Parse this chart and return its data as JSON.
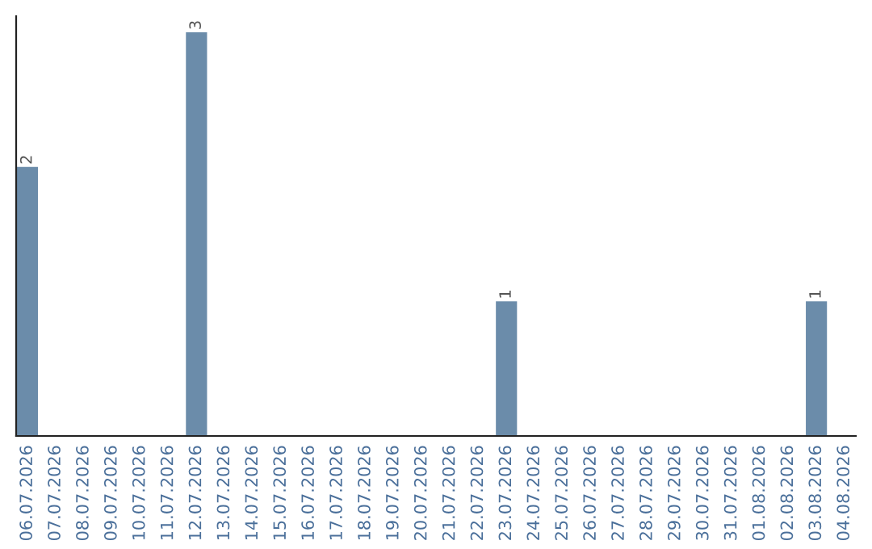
{
  "chart_data": {
    "type": "bar",
    "categories": [
      "06.07.2026",
      "07.07.2026",
      "08.07.2026",
      "09.07.2026",
      "10.07.2026",
      "11.07.2026",
      "12.07.2026",
      "13.07.2026",
      "14.07.2026",
      "15.07.2026",
      "16.07.2026",
      "17.07.2026",
      "18.07.2026",
      "19.07.2026",
      "20.07.2026",
      "21.07.2026",
      "22.07.2026",
      "23.07.2026",
      "24.07.2026",
      "25.07.2026",
      "26.07.2026",
      "27.07.2026",
      "28.07.2026",
      "29.07.2026",
      "30.07.2026",
      "31.07.2026",
      "01.08.2026",
      "02.08.2026",
      "03.08.2026",
      "04.08.2026"
    ],
    "values": [
      2,
      null,
      null,
      null,
      null,
      null,
      3,
      null,
      null,
      null,
      null,
      null,
      null,
      null,
      null,
      null,
      null,
      1,
      null,
      null,
      null,
      null,
      null,
      null,
      null,
      null,
      null,
      null,
      1,
      null
    ],
    "value_labels": [
      "2",
      null,
      null,
      null,
      null,
      null,
      "3",
      null,
      null,
      null,
      null,
      null,
      null,
      null,
      null,
      null,
      null,
      "1",
      null,
      null,
      null,
      null,
      null,
      null,
      null,
      null,
      null,
      null,
      "1",
      null
    ],
    "color": "#6b8caa",
    "tick_labels": "x",
    "grid": false,
    "legend": false
  }
}
